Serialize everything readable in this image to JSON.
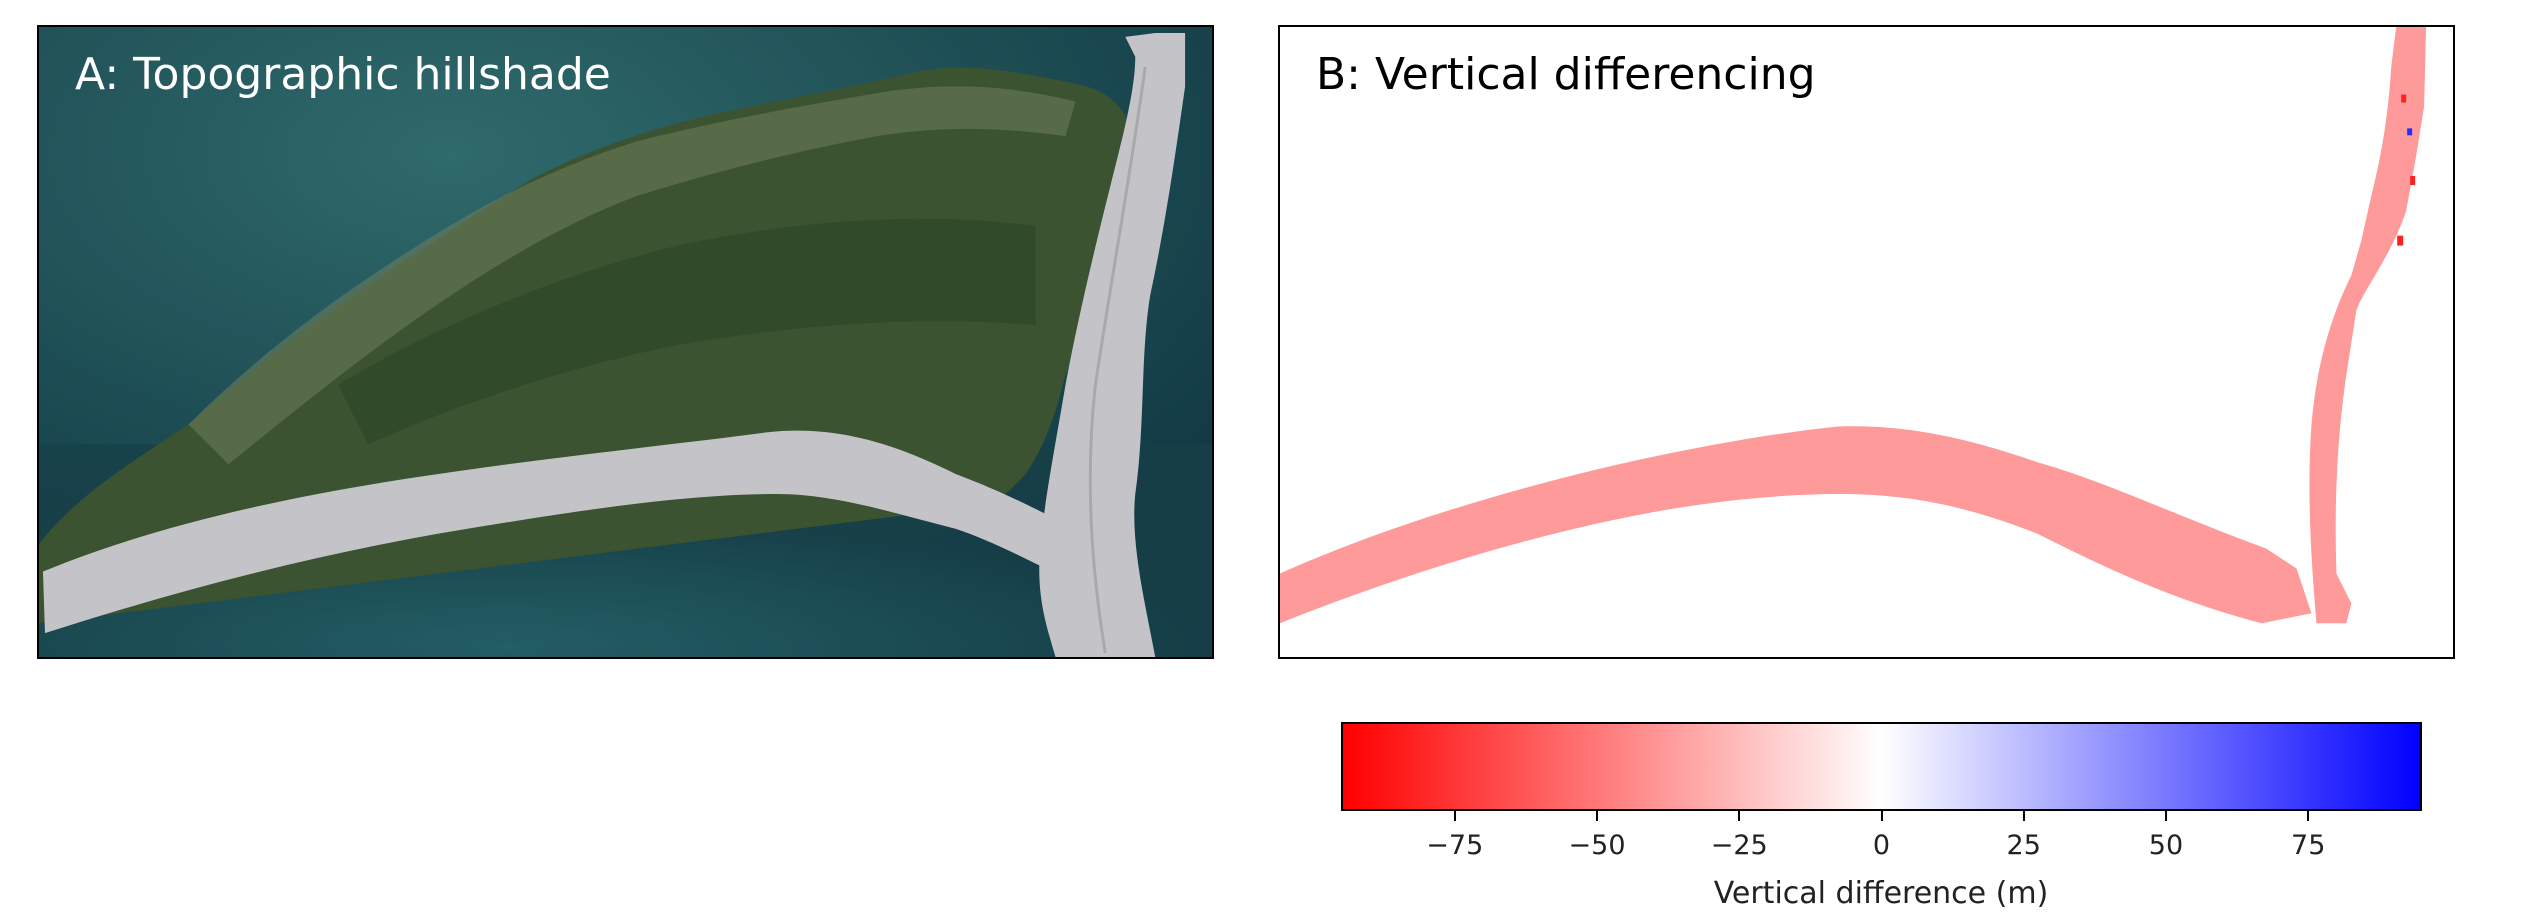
{
  "panels": {
    "a": {
      "title": "A: Topographic hillshade"
    },
    "b": {
      "title": "B: Vertical differencing"
    }
  },
  "colorbar": {
    "label": "Vertical difference (m)",
    "min": -95,
    "max": 95,
    "ticks": [
      {
        "value": -75,
        "label": "−75"
      },
      {
        "value": -50,
        "label": "−50"
      },
      {
        "value": -25,
        "label": "−25"
      },
      {
        "value": 0,
        "label": "0"
      },
      {
        "value": 25,
        "label": "25"
      },
      {
        "value": 50,
        "label": "50"
      },
      {
        "value": 75,
        "label": "75"
      }
    ],
    "colors": {
      "negative": "#ff0000",
      "zero": "#ffffff",
      "positive": "#0000ff"
    }
  },
  "colors": {
    "water": "#1d4a52",
    "land": "#3a5230",
    "hillshade": "#c4c4c8",
    "difference_fill": "#ff9a9a"
  }
}
